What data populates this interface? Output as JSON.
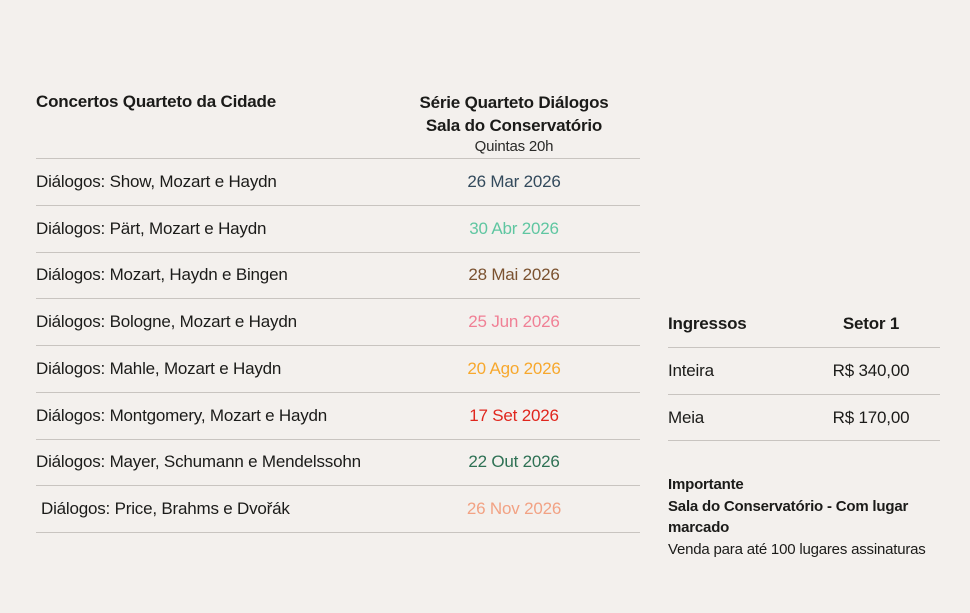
{
  "page": {
    "background_color": "#f3f0ed",
    "divider_color": "#c8c4c0",
    "text_color": "#1b1b19"
  },
  "schedule": {
    "title": "Concertos Quarteto da Cidade",
    "series_name": "Série Quarteto Diálogos",
    "series_venue": "Sala do Conservatório",
    "series_time": "Quintas 20h",
    "rows": [
      {
        "label": "Diálogos: Show, Mozart e Haydn",
        "date": "26 Mar 2026",
        "date_color": "#334a5c"
      },
      {
        "label": "Diálogos: Pärt, Mozart e Haydn",
        "date": "30 Abr 2026",
        "date_color": "#5fc6a1"
      },
      {
        "label": "Diálogos: Mozart, Haydn e Bingen",
        "date": "28 Mai 2026",
        "date_color": "#7b5230"
      },
      {
        "label": "Diálogos: Bologne, Mozart e Haydn",
        "date": "25 Jun 2026",
        "date_color": "#f08095"
      },
      {
        "label": "Diálogos: Mahle, Mozart e Haydn",
        "date": "20 Ago 2026",
        "date_color": "#f7a82d"
      },
      {
        "label": "Diálogos: Montgomery, Mozart e Haydn",
        "date": "17 Set 2026",
        "date_color": "#e0261d"
      },
      {
        "label": "Diálogos: Mayer, Schumann e Mendelssohn",
        "date": "22 Out 2026",
        "date_color": "#2e7154"
      },
      {
        "label": "Diálogos: Price, Brahms e Dvořák",
        "date": "26 Nov 2026",
        "date_color": "#f2a284"
      }
    ]
  },
  "tickets": {
    "title": "Ingressos",
    "sector": "Setor 1",
    "rows": [
      {
        "type": "Inteira",
        "price": "R$ 340,00"
      },
      {
        "type": "Meia",
        "price": "R$ 170,00"
      }
    ]
  },
  "notes": {
    "heading": "Importante",
    "line1": "Sala do Conservatório - Com lugar marcado",
    "line2": "Venda para até 100 lugares assinaturas"
  }
}
